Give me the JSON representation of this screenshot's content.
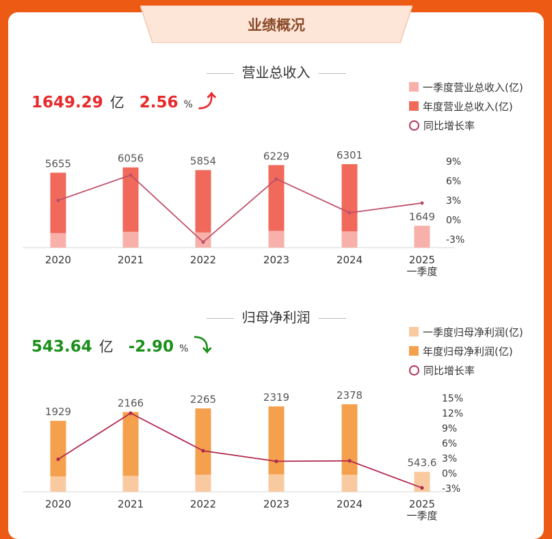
{
  "header": {
    "title": "业绩概况"
  },
  "revenue": {
    "title": "营业总收入",
    "kpi_value": "1649.29",
    "kpi_unit": "亿",
    "kpi_change": "2.56",
    "kpi_pct": "%",
    "kpi_direction": "up",
    "kpi_color": "#e8292b",
    "legend": [
      "一季度营业总收入(亿)",
      "年度营业总收入(亿)",
      "同比增长率"
    ]
  },
  "profit": {
    "title": "归母净利润",
    "kpi_value": "543.64",
    "kpi_unit": "亿",
    "kpi_change": "-2.90",
    "kpi_pct": "%",
    "kpi_direction": "down",
    "kpi_color": "#1a8f1a",
    "legend": [
      "一季度归母净利润(亿)",
      "年度归母净利润(亿)",
      "同比增长率"
    ]
  },
  "chart_data": [
    {
      "type": "bar",
      "categories": [
        "2020",
        "2021",
        "2022",
        "2023",
        "2024",
        "2025\n一季度"
      ],
      "series": [
        {
          "name": "一季度营业总收入(亿)",
          "values": [
            1100,
            1200,
            1150,
            1270,
            1230,
            1649
          ],
          "color": "#f7b1aa"
        },
        {
          "name": "年度营业总收入(亿)",
          "values": [
            5655,
            6056,
            5854,
            6229,
            6301,
            null
          ],
          "color": "#f0695a"
        },
        {
          "name": "同比增长率",
          "type": "line",
          "values": [
            3.0,
            6.9,
            -3.4,
            6.3,
            1.1,
            2.6
          ],
          "color": "#c0506a"
        }
      ],
      "bar_labels": [
        "5655",
        "6056",
        "5854",
        "6229",
        "6301",
        "1649"
      ],
      "y_right_ticks": [
        "9%",
        "6%",
        "3%",
        "0%",
        "-3%"
      ],
      "y_right_range": [
        -3,
        9
      ]
    },
    {
      "type": "bar",
      "categories": [
        "2020",
        "2021",
        "2022",
        "2023",
        "2024",
        "2025\n一季度"
      ],
      "series": [
        {
          "name": "一季度归母净利润(亿)",
          "values": [
            420,
            435,
            465,
            475,
            465,
            543.6
          ],
          "color": "#f9caa0"
        },
        {
          "name": "年度归母净利润(亿)",
          "values": [
            1929,
            2166,
            2265,
            2319,
            2378,
            null
          ],
          "color": "#f5a04c"
        },
        {
          "name": "同比增长率",
          "type": "line",
          "values": [
            2.8,
            12.0,
            4.5,
            2.4,
            2.5,
            -2.9
          ],
          "color": "#b0284f"
        }
      ],
      "bar_labels": [
        "1929",
        "2166",
        "2265",
        "2319",
        "2378",
        "543.6"
      ],
      "y_right_ticks": [
        "15%",
        "12%",
        "9%",
        "6%",
        "3%",
        "0%",
        "-3%"
      ],
      "y_right_range": [
        -3,
        15
      ]
    }
  ]
}
